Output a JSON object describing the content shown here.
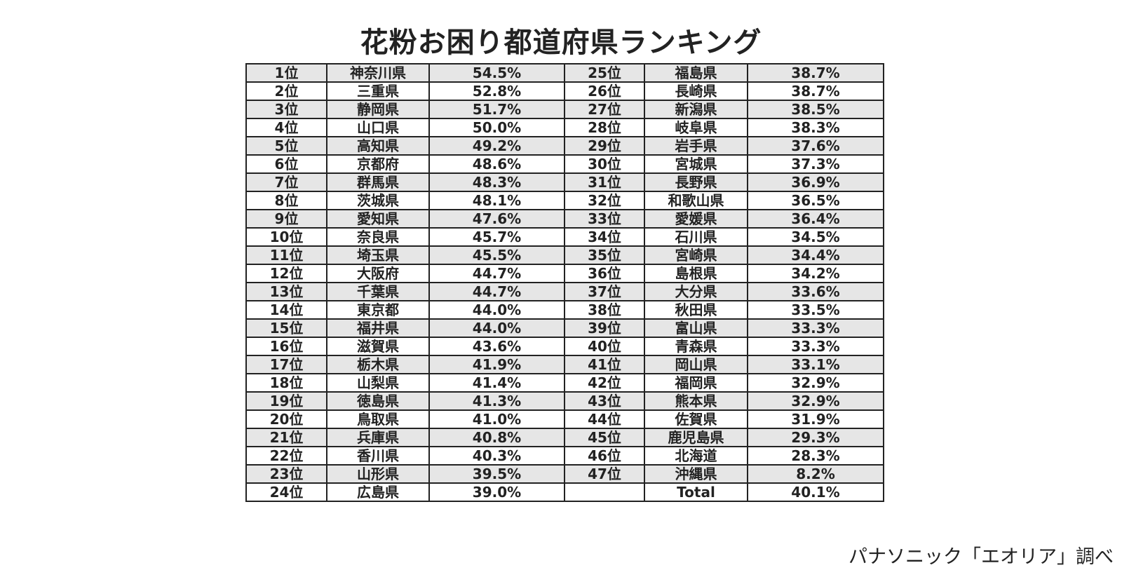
{
  "title": "花粉お困り都道府県ランキング",
  "table": {
    "left": [
      [
        "1位",
        "神奈川県",
        "54.5%"
      ],
      [
        "2位",
        "三重県",
        "52.8%"
      ],
      [
        "3位",
        "静岡県",
        "51.7%"
      ],
      [
        "4位",
        "山口県",
        "50.0%"
      ],
      [
        "5位",
        "高知県",
        "49.2%"
      ],
      [
        "6位",
        "京都府",
        "48.6%"
      ],
      [
        "7位",
        "群馬県",
        "48.3%"
      ],
      [
        "8位",
        "茨城県",
        "48.1%"
      ],
      [
        "9位",
        "愛知県",
        "47.6%"
      ],
      [
        "10位",
        "奈良県",
        "45.7%"
      ],
      [
        "11位",
        "埼玉県",
        "45.5%"
      ],
      [
        "12位",
        "大阪府",
        "44.7%"
      ],
      [
        "13位",
        "千葉県",
        "44.7%"
      ],
      [
        "14位",
        "東京都",
        "44.0%"
      ],
      [
        "15位",
        "福井県",
        "44.0%"
      ],
      [
        "16位",
        "滋賀県",
        "43.6%"
      ],
      [
        "17位",
        "栃木県",
        "41.9%"
      ],
      [
        "18位",
        "山梨県",
        "41.4%"
      ],
      [
        "19位",
        "徳島県",
        "41.3%"
      ],
      [
        "20位",
        "鳥取県",
        "41.0%"
      ],
      [
        "21位",
        "兵庫県",
        "40.8%"
      ],
      [
        "22位",
        "香川県",
        "40.3%"
      ],
      [
        "23位",
        "山形県",
        "39.5%"
      ],
      [
        "24位",
        "広島県",
        "39.0%"
      ]
    ],
    "right": [
      [
        "25位",
        "福島県",
        "38.7%"
      ],
      [
        "26位",
        "長崎県",
        "38.7%"
      ],
      [
        "27位",
        "新潟県",
        "38.5%"
      ],
      [
        "28位",
        "岐阜県",
        "38.3%"
      ],
      [
        "29位",
        "岩手県",
        "37.6%"
      ],
      [
        "30位",
        "宮城県",
        "37.3%"
      ],
      [
        "31位",
        "長野県",
        "36.9%"
      ],
      [
        "32位",
        "和歌山県",
        "36.5%"
      ],
      [
        "33位",
        "愛媛県",
        "36.4%"
      ],
      [
        "34位",
        "石川県",
        "34.5%"
      ],
      [
        "35位",
        "宮崎県",
        "34.4%"
      ],
      [
        "36位",
        "島根県",
        "34.2%"
      ],
      [
        "37位",
        "大分県",
        "33.6%"
      ],
      [
        "38位",
        "秋田県",
        "33.5%"
      ],
      [
        "39位",
        "富山県",
        "33.3%"
      ],
      [
        "40位",
        "青森県",
        "33.3%"
      ],
      [
        "41位",
        "岡山県",
        "33.1%"
      ],
      [
        "42位",
        "福岡県",
        "32.9%"
      ],
      [
        "43位",
        "熊本県",
        "32.9%"
      ],
      [
        "44位",
        "佐賀県",
        "31.9%"
      ],
      [
        "45位",
        "鹿児島県",
        "29.3%"
      ],
      [
        "46位",
        "北海道",
        "28.3%"
      ],
      [
        "47位",
        "沖縄県",
        "8.2%"
      ]
    ],
    "total": {
      "label": "Total",
      "value": "40.1%"
    }
  },
  "source": "パナソニック「エオリア」調べ"
}
